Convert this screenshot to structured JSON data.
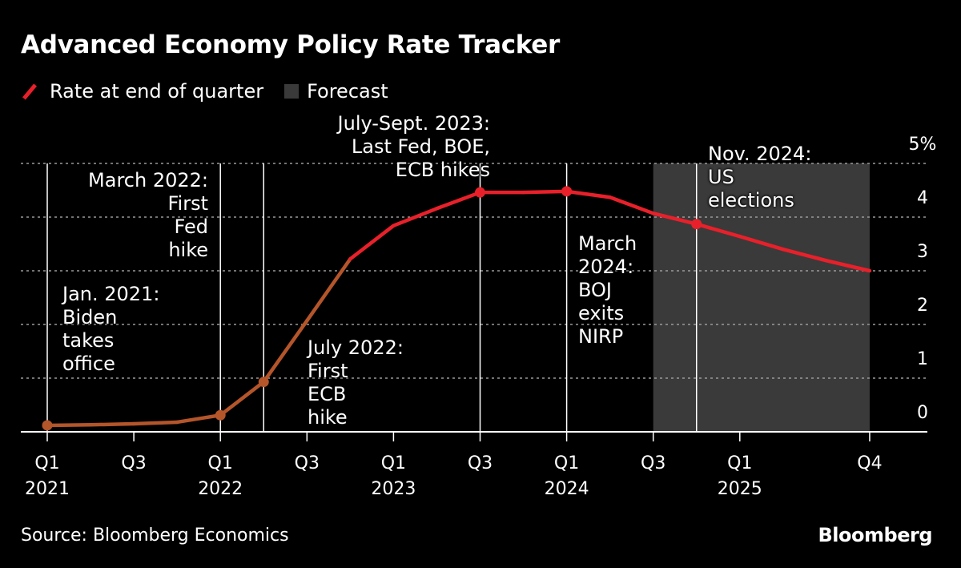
{
  "chart_data": {
    "type": "line",
    "title": "Advanced Economy Policy Rate Tracker",
    "legend": [
      {
        "label": "Rate at end of quarter",
        "color": "#e8202a"
      },
      {
        "label": "Forecast",
        "color": "#3a3a3a"
      }
    ],
    "legend_placement": "top-left",
    "x": [
      "Q1 2021",
      "Q2 2021",
      "Q3 2021",
      "Q4 2021",
      "Q1 2022",
      "Q2 2022",
      "Q3 2022",
      "Q4 2022",
      "Q1 2023",
      "Q2 2023",
      "Q3 2023",
      "Q4 2023",
      "Q1 2024",
      "Q2 2024",
      "Q3 2024",
      "Q4 2024",
      "Q1 2025",
      "Q2 2025",
      "Q3 2025",
      "Q4 2025"
    ],
    "series": [
      {
        "name": "Rate at end of quarter",
        "values": [
          0.12,
          0.13,
          0.15,
          0.18,
          0.31,
          0.93,
          2.07,
          3.22,
          3.84,
          4.16,
          4.46,
          4.46,
          4.48,
          4.37,
          4.07,
          3.87,
          3.64,
          3.4,
          3.19,
          3.0
        ]
      }
    ],
    "markers_at": [
      0,
      4,
      5,
      10,
      12,
      15
    ],
    "forecast_range": [
      14,
      19
    ],
    "ylim": [
      0,
      5
    ],
    "y_ticks": [
      {
        "value": 0,
        "label": "0"
      },
      {
        "value": 1,
        "label": "1"
      },
      {
        "value": 2,
        "label": "2"
      },
      {
        "value": 3,
        "label": "3"
      },
      {
        "value": 4,
        "label": "4"
      },
      {
        "value": 5,
        "label": "5%"
      }
    ],
    "x_ticks": [
      {
        "index": 0,
        "q": "Q1",
        "year": "2021"
      },
      {
        "index": 2,
        "q": "Q3",
        "year": ""
      },
      {
        "index": 4,
        "q": "Q1",
        "year": "2022"
      },
      {
        "index": 6,
        "q": "Q3",
        "year": ""
      },
      {
        "index": 8,
        "q": "Q1",
        "year": "2023"
      },
      {
        "index": 10,
        "q": "Q3",
        "year": ""
      },
      {
        "index": 12,
        "q": "Q1",
        "year": "2024"
      },
      {
        "index": 14,
        "q": "Q3",
        "year": ""
      },
      {
        "index": 16,
        "q": "Q1",
        "year": "2025"
      },
      {
        "index": 19,
        "q": "Q4",
        "year": ""
      }
    ],
    "event_lines": [
      0,
      4,
      5,
      10,
      12,
      15
    ],
    "annotations": [
      {
        "lines": [
          "Jan. 2021:",
          "Biden",
          "takes",
          "office"
        ]
      },
      {
        "lines": [
          "March 2022:",
          "First",
          "Fed",
          "hike"
        ]
      },
      {
        "lines": [
          "July 2022:",
          "First",
          "ECB",
          "hike"
        ]
      },
      {
        "lines": [
          "July-Sept. 2023:",
          "Last Fed, BOE,",
          "ECB hikes"
        ]
      },
      {
        "lines": [
          "March",
          "2024:",
          "BOJ",
          "exits",
          "NIRP"
        ]
      },
      {
        "lines": [
          "Nov. 2024:",
          "US",
          "elections"
        ]
      }
    ],
    "grid": true
  },
  "footer": {
    "source": "Source: Bloomberg Economics",
    "logo": "Bloomberg"
  }
}
